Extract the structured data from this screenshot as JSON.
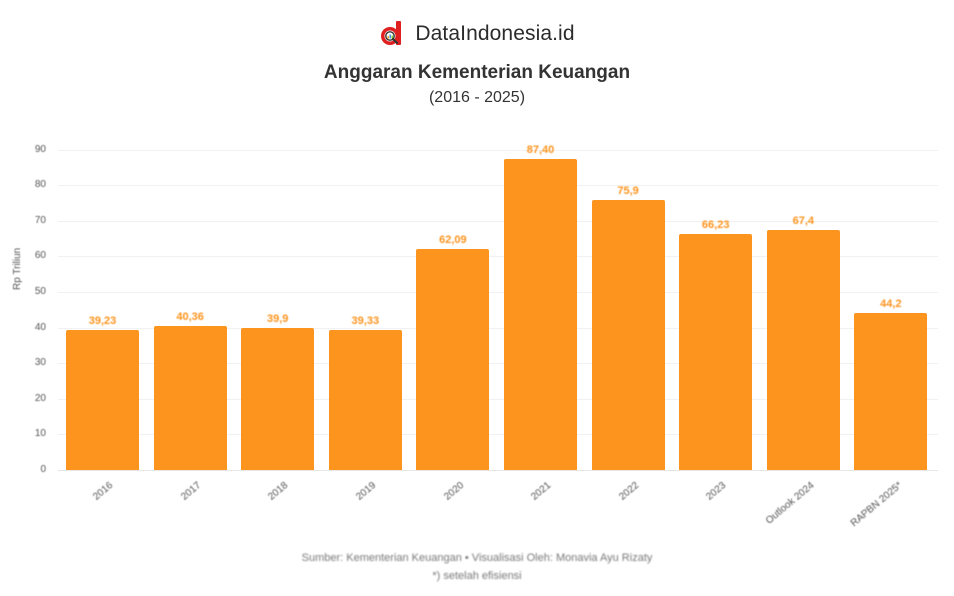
{
  "brand": {
    "name": "DataIndonesia.id",
    "logo_icon": "dataindonesia-logo-icon",
    "logo_color": "#e02020"
  },
  "header": {
    "title": "Anggaran Kementerian Keuangan",
    "subtitle": "(2016 - 2025)"
  },
  "footer": {
    "source": "Sumber: Kementerian Keuangan • Visualisasi Oleh: Monavia Ayu Rizaty",
    "note": "*) setelah efisiensi"
  },
  "chart_data": {
    "type": "bar",
    "title": "Anggaran Kementerian Keuangan",
    "subtitle": "(2016 - 2025)",
    "xlabel": "",
    "ylabel": "Rp Triliun",
    "ylim": [
      0,
      90
    ],
    "yticks": [
      0,
      10,
      20,
      30,
      40,
      50,
      60,
      70,
      80,
      90
    ],
    "ytick_labels": [
      "0",
      "10",
      "20",
      "30",
      "40",
      "50",
      "60",
      "70",
      "80",
      "90"
    ],
    "grid": true,
    "legend": null,
    "bar_color": "#fc941e",
    "categories": [
      "2016",
      "2017",
      "2018",
      "2019",
      "2020",
      "2021",
      "2022",
      "2023",
      "Outlook 2024",
      "RAPBN 2025*"
    ],
    "values": [
      39.23,
      40.36,
      39.9,
      39.33,
      62.09,
      87.4,
      75.9,
      66.23,
      67.4,
      44.2
    ],
    "value_labels": [
      "39,23",
      "40,36",
      "39,9",
      "39,33",
      "62,09",
      "87,40",
      "75,9",
      "66,23",
      "67,4",
      "44,2"
    ],
    "notes": [
      "Sumber: Kementerian Keuangan • Visualisasi Oleh: Monavia Ayu Rizaty",
      "*) setelah efisiensi"
    ]
  }
}
